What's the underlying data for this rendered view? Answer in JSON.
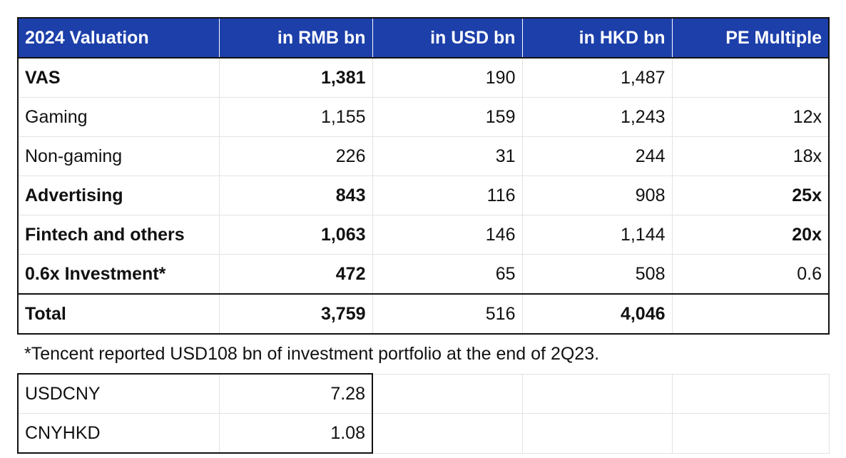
{
  "table": {
    "headers": [
      "2024 Valuation",
      "in RMB bn",
      "in USD bn",
      "in HKD bn",
      "PE Multiple"
    ],
    "rows": [
      {
        "label": "VAS",
        "rmb": "1,381",
        "usd": "190",
        "hkd": "1,487",
        "pe": ""
      },
      {
        "label": "Gaming",
        "rmb": "1,155",
        "usd": "159",
        "hkd": "1,243",
        "pe": "12x"
      },
      {
        "label": "Non-gaming",
        "rmb": "226",
        "usd": "31",
        "hkd": "244",
        "pe": "18x"
      },
      {
        "label": "Advertising",
        "rmb": "843",
        "usd": "116",
        "hkd": "908",
        "pe": "25x"
      },
      {
        "label": "Fintech and others",
        "rmb": "1,063",
        "usd": "146",
        "hkd": "1,144",
        "pe": "20x"
      },
      {
        "label": "0.6x Investment*",
        "rmb": "472",
        "usd": "65",
        "hkd": "508",
        "pe": "0.6"
      }
    ],
    "total": {
      "label": "Total",
      "rmb": "3,759",
      "usd": "516",
      "hkd": "4,046",
      "pe": ""
    }
  },
  "footnote": "*Tencent reported USD108 bn of investment portfolio at the end of 2Q23.",
  "fx_rates": [
    {
      "label": "USDCNY",
      "value": "7.28"
    },
    {
      "label": "CNYHKD",
      "value": "1.08"
    }
  ],
  "colors": {
    "header_bg": "#1c3faa",
    "header_text": "#ffffff",
    "border": "#111111",
    "gridline": "#e3e3e3"
  }
}
